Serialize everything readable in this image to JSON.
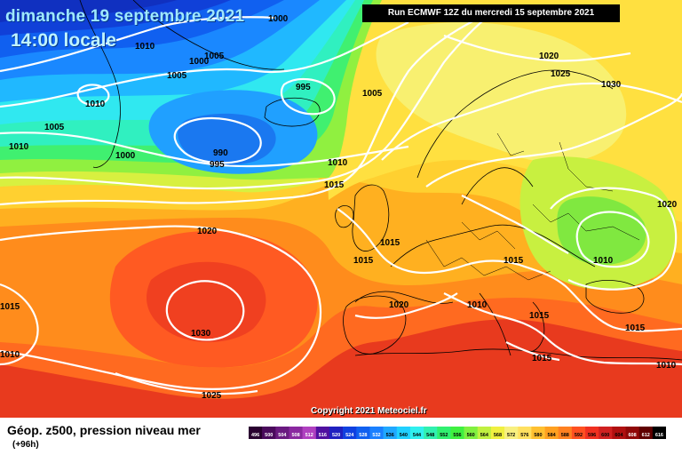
{
  "header": {
    "date": "dimanche 19 septembre 2021",
    "time": "14:00 locale",
    "run": "Run ECMWF 12Z du mercredi 15 septembre 2021"
  },
  "footer": {
    "product": "Géop. z500, pression niveau mer",
    "lead_time": "(+96h)",
    "copyright": "Copyright 2021 Meteociel.fr"
  },
  "legend": {
    "ticks": [
      "496",
      "500",
      "504",
      "508",
      "512",
      "516",
      "520",
      "524",
      "528",
      "532",
      "536",
      "540",
      "544",
      "548",
      "552",
      "556",
      "560",
      "564",
      "568",
      "572",
      "576",
      "580",
      "584",
      "588",
      "592",
      "596",
      "600",
      "604",
      "608",
      "612",
      "616"
    ],
    "colors": [
      "#2a0030",
      "#4a0a5c",
      "#6a1a80",
      "#8a28a0",
      "#b040c0",
      "#5010a0",
      "#2020c0",
      "#1040e0",
      "#1060f0",
      "#1a80ff",
      "#20a8ff",
      "#20d0ff",
      "#30f0ee",
      "#30f0b0",
      "#30f070",
      "#40f040",
      "#80f040",
      "#c0f040",
      "#f0f040",
      "#f8f080",
      "#ffe060",
      "#ffc030",
      "#ffa020",
      "#ff8020",
      "#ff5020",
      "#f03020",
      "#d02020",
      "#b01010",
      "#900808",
      "#600000",
      "#000000"
    ]
  },
  "isobars": {
    "labels": [
      "1000",
      "1010",
      "1005",
      "1005",
      "1000",
      "1010",
      "995",
      "1005",
      "990",
      "995",
      "1005",
      "1010",
      "1000",
      "1010",
      "1015",
      "1020",
      "1025",
      "1030",
      "1020",
      "1015",
      "1015",
      "1015",
      "1010",
      "1020",
      "1010",
      "1030",
      "1025",
      "1020",
      "1010",
      "1015",
      "1015",
      "1015",
      "1010",
      "1015"
    ]
  }
}
